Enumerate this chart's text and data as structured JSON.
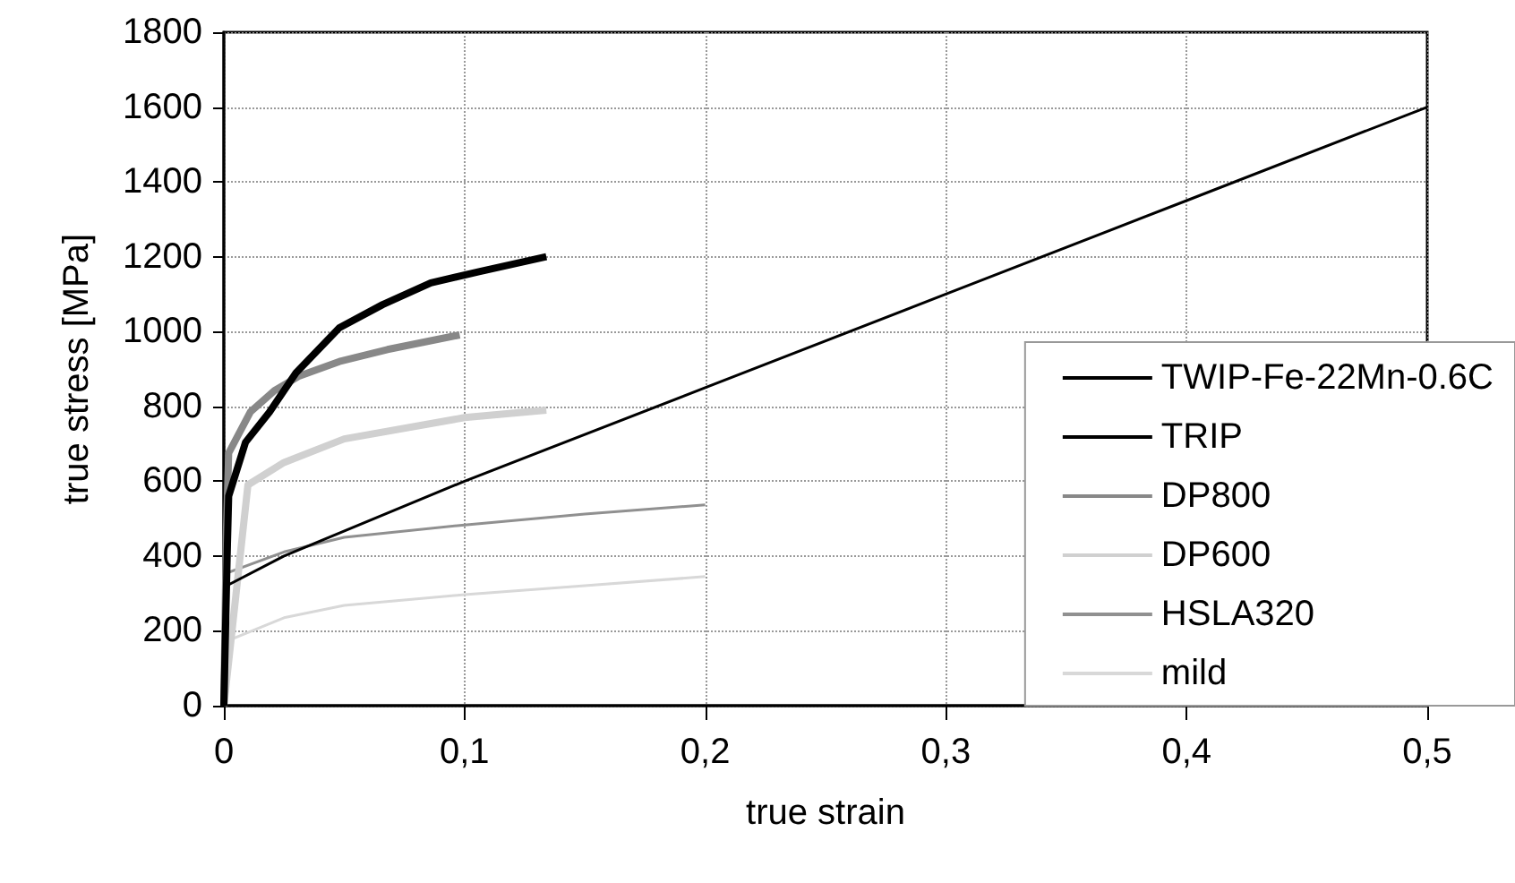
{
  "chart_data": {
    "type": "line",
    "xlabel": "true strain",
    "ylabel": "true stress [MPa]",
    "xlim": [
      0,
      0.5
    ],
    "ylim": [
      0,
      1800
    ],
    "xticks": [
      {
        "value": 0,
        "label": "0"
      },
      {
        "value": 0.1,
        "label": "0,1"
      },
      {
        "value": 0.2,
        "label": "0,2"
      },
      {
        "value": 0.3,
        "label": "0,3"
      },
      {
        "value": 0.4,
        "label": "0,4"
      },
      {
        "value": 0.5,
        "label": "0,5"
      }
    ],
    "yticks": [
      0,
      200,
      400,
      600,
      800,
      1000,
      1200,
      1400,
      1600,
      1800
    ],
    "grid": true,
    "legend": "bottom right",
    "marker": "none",
    "line_style": "solid",
    "series": [
      {
        "name": "TWIP-Fe-22Mn-0.6C",
        "color": "#000000",
        "x": [
          0,
          0.001,
          0.025,
          0.1,
          0.2,
          0.3,
          0.4,
          0.5
        ],
        "values": [
          0,
          320,
          400,
          600,
          850,
          1100,
          1350,
          1600
        ]
      },
      {
        "name": "TRIP",
        "color": "#000000",
        "x": [
          0,
          0.0015,
          0.002,
          0.009,
          0.019,
          0.03,
          0.048,
          0.066,
          0.086,
          0.106,
          0.134
        ],
        "values": [
          0,
          435,
          560,
          704,
          785,
          890,
          1010,
          1072,
          1130,
          1160,
          1200
        ]
      },
      {
        "name": "DP800",
        "color": "#888888",
        "x": [
          0,
          0.001,
          0.002,
          0.011,
          0.021,
          0.031,
          0.048,
          0.068,
          0.098
        ],
        "values": [
          0,
          450,
          675,
          785,
          842,
          880,
          920,
          952,
          991
        ]
      },
      {
        "name": "DP600",
        "color": "#d0d0d0",
        "x": [
          0,
          0.01,
          0.025,
          0.05,
          0.1,
          0.134
        ],
        "values": [
          0,
          590,
          650,
          713,
          770,
          790
        ]
      },
      {
        "name": "HSLA320",
        "color": "#909090",
        "x": [
          0,
          0.001,
          0.025,
          0.05,
          0.1,
          0.15,
          0.2
        ],
        "values": [
          0,
          354,
          411,
          450,
          483,
          512,
          537
        ]
      },
      {
        "name": "mild",
        "color": "#d8d8d8",
        "x": [
          0,
          0.001,
          0.025,
          0.05,
          0.1,
          0.15,
          0.2
        ],
        "values": [
          0,
          172,
          235,
          268,
          297,
          321,
          345
        ]
      }
    ]
  }
}
